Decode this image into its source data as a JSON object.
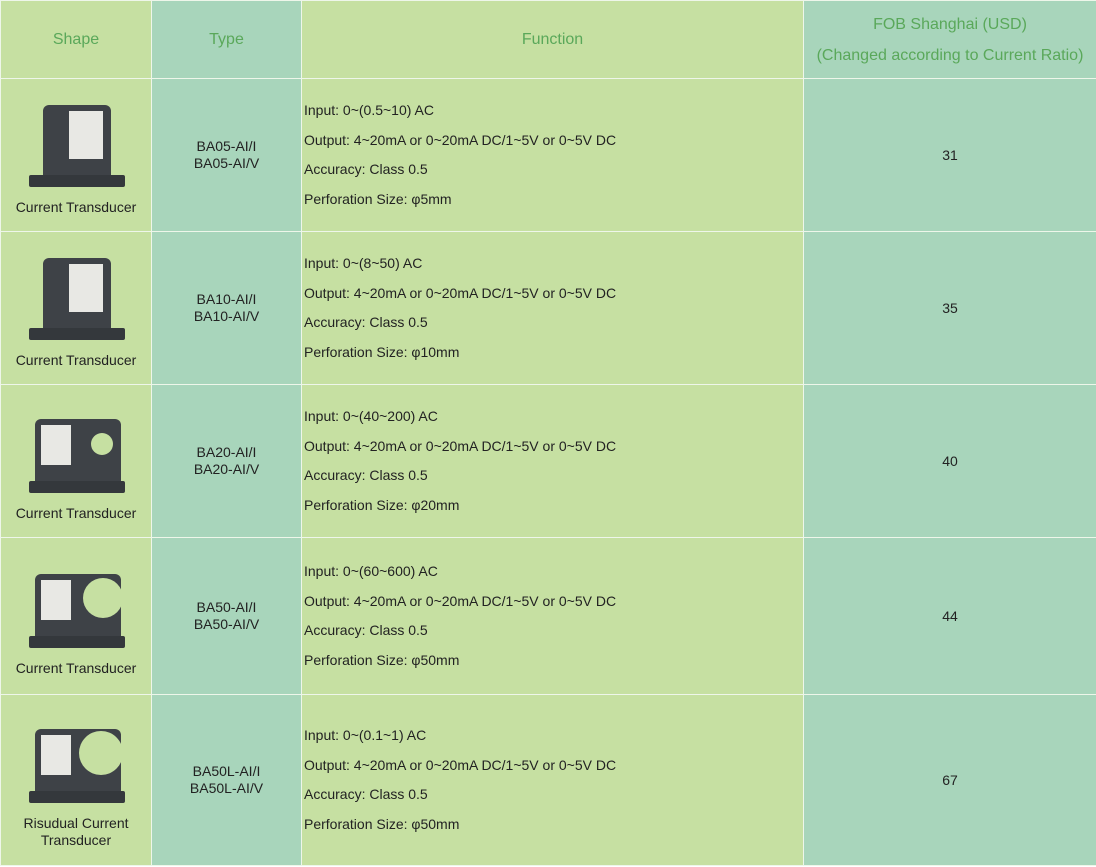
{
  "headers": {
    "shape": "Shape",
    "type": "Type",
    "function": "Function",
    "fob_line1": "FOB Shanghai (USD)",
    "fob_line2": "(Changed according to Current Ratio)"
  },
  "rows": [
    {
      "caption": "Current Transducer",
      "type1": "BA05-AI/I",
      "type2": "BA05-AI/V",
      "input": "Input: 0~(0.5~10) AC",
      "output": "Output: 4~20mA or 0~20mA DC/1~5V or 0~5V DC",
      "accuracy": "Accuracy: Class 0.5",
      "perforation": "Perforation Size: φ5mm",
      "price": "31"
    },
    {
      "caption": "Current Transducer",
      "type1": "BA10-AI/I",
      "type2": "BA10-AI/V",
      "input": "Input: 0~(8~50) AC",
      "output": "Output: 4~20mA or 0~20mA DC/1~5V or 0~5V DC",
      "accuracy": "Accuracy: Class 0.5",
      "perforation": "Perforation Size: φ10mm",
      "price": "35"
    },
    {
      "caption": "Current Transducer",
      "type1": "BA20-AI/I",
      "type2": "BA20-AI/V",
      "input": "Input: 0~(40~200) AC",
      "output": "Output: 4~20mA or 0~20mA DC/1~5V or 0~5V DC",
      "accuracy": "Accuracy: Class 0.5",
      "perforation": "Perforation Size: φ20mm",
      "price": "40"
    },
    {
      "caption": "Current Transducer",
      "type1": "BA50-AI/I",
      "type2": "BA50-AI/V",
      "input": "Input: 0~(60~600) AC",
      "output": "Output: 4~20mA or 0~20mA DC/1~5V or 0~5V DC",
      "accuracy": "Accuracy: Class 0.5",
      "perforation": "Perforation Size: φ50mm",
      "price": "44"
    },
    {
      "caption": "Risudual Current Transducer",
      "type1": "BA50L-AI/I",
      "type2": "BA50L-AI/V",
      "input": "Input: 0~(0.1~1) AC",
      "output": "Output: 4~20mA or 0~20mA DC/1~5V or 0~5V DC",
      "accuracy": "Accuracy: Class 0.5",
      "perforation": "Perforation Size: φ50mm",
      "price": "67"
    }
  ],
  "colors": {
    "green_column": "#c6e0a2",
    "teal_column": "#a8d5bb",
    "header_text": "#5aa85a"
  }
}
